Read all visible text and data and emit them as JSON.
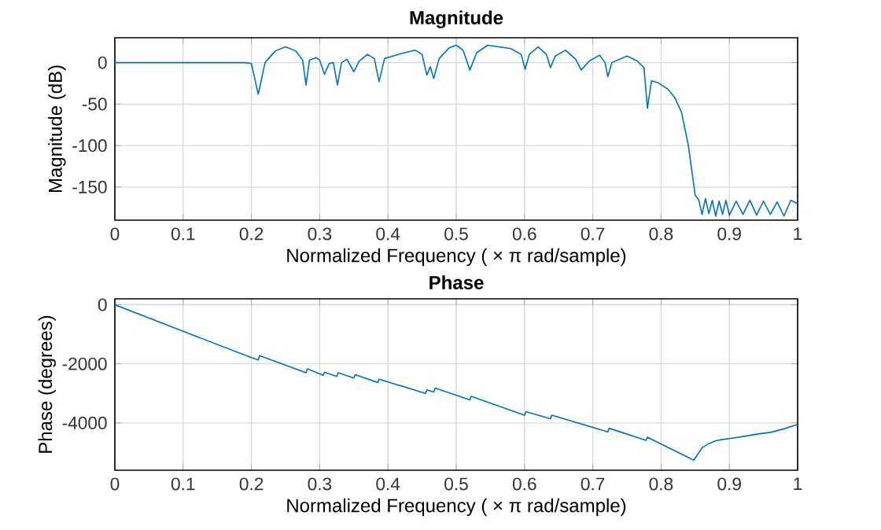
{
  "chart_data": [
    {
      "type": "line",
      "title": "Magnitude",
      "xlabel": "Normalized Frequency  ( × π rad/sample)",
      "ylabel": "Magnitude (dB)",
      "color": "#0072bd",
      "grid": true,
      "xlim": [
        0,
        1
      ],
      "ylim": [
        -190,
        30
      ],
      "xticks": [
        0,
        0.1,
        0.2,
        0.3,
        0.4,
        0.5,
        0.6,
        0.7,
        0.8,
        0.9,
        1
      ],
      "yticks": [
        -150,
        -100,
        -50,
        0
      ],
      "x": [
        0,
        0.1,
        0.19,
        0.2,
        0.21,
        0.22,
        0.235,
        0.25,
        0.265,
        0.275,
        0.28,
        0.285,
        0.295,
        0.3,
        0.307,
        0.314,
        0.32,
        0.326,
        0.332,
        0.34,
        0.35,
        0.358,
        0.37,
        0.38,
        0.387,
        0.395,
        0.42,
        0.44,
        0.45,
        0.457,
        0.462,
        0.467,
        0.475,
        0.49,
        0.5,
        0.51,
        0.52,
        0.53,
        0.546,
        0.58,
        0.595,
        0.601,
        0.607,
        0.62,
        0.632,
        0.638,
        0.645,
        0.66,
        0.675,
        0.683,
        0.695,
        0.71,
        0.718,
        0.722,
        0.728,
        0.75,
        0.765,
        0.775,
        0.78,
        0.786,
        0.795,
        0.81,
        0.82,
        0.83,
        0.84,
        0.85,
        0.855,
        0.86,
        0.865,
        0.87,
        0.875,
        0.88,
        0.885,
        0.89,
        0.895,
        0.9,
        0.91,
        0.92,
        0.93,
        0.94,
        0.95,
        0.96,
        0.97,
        0.98,
        0.99,
        1
      ],
      "values": [
        0,
        0,
        0,
        -1,
        -38,
        0,
        14,
        19,
        14,
        3,
        -27,
        3,
        6,
        3,
        -14,
        -1,
        0,
        -27,
        0,
        4,
        -11,
        2,
        10,
        5,
        -23,
        5,
        11,
        15,
        10,
        -15,
        -5,
        -19,
        5,
        18,
        21,
        15,
        -9,
        12,
        21,
        17,
        10,
        -8,
        10,
        19,
        10,
        -6,
        8,
        15,
        4,
        -9,
        2,
        9,
        0,
        -17,
        0,
        8,
        2,
        -6,
        -55,
        -22,
        -24,
        -32,
        -42,
        -60,
        -100,
        -160,
        -165,
        -183,
        -164,
        -182,
        -166,
        -185,
        -167,
        -183,
        -166,
        -184,
        -167,
        -183,
        -166,
        -184,
        -167,
        -183,
        -168,
        -185,
        -166,
        -170
      ]
    },
    {
      "type": "line",
      "title": "Phase",
      "xlabel": "Normalized Frequency  ( × π rad/sample)",
      "ylabel": "Phase (degrees)",
      "color": "#0072bd",
      "grid": true,
      "xlim": [
        0,
        1
      ],
      "ylim": [
        -5600,
        200
      ],
      "xticks": [
        0,
        0.1,
        0.2,
        0.3,
        0.4,
        0.5,
        0.6,
        0.7,
        0.8,
        0.9,
        1
      ],
      "yticks": [
        -4000,
        -2000,
        0
      ],
      "x": [
        0,
        0.1,
        0.2,
        0.21,
        0.212,
        0.28,
        0.282,
        0.305,
        0.307,
        0.325,
        0.327,
        0.35,
        0.352,
        0.385,
        0.387,
        0.455,
        0.457,
        0.467,
        0.469,
        0.52,
        0.522,
        0.6,
        0.602,
        0.638,
        0.64,
        0.722,
        0.724,
        0.778,
        0.78,
        0.848,
        0.86,
        0.87,
        0.88,
        0.89,
        0.9,
        0.92,
        0.94,
        0.96,
        0.98,
        1
      ],
      "values": [
        0,
        -900,
        -1790,
        -1870,
        -1720,
        -2300,
        -2170,
        -2390,
        -2290,
        -2420,
        -2300,
        -2480,
        -2370,
        -2630,
        -2520,
        -3000,
        -2880,
        -2950,
        -2820,
        -3220,
        -3100,
        -3740,
        -3620,
        -3860,
        -3740,
        -4300,
        -4180,
        -4590,
        -4480,
        -5260,
        -4840,
        -4700,
        -4600,
        -4560,
        -4530,
        -4460,
        -4380,
        -4320,
        -4200,
        -4050
      ]
    }
  ]
}
